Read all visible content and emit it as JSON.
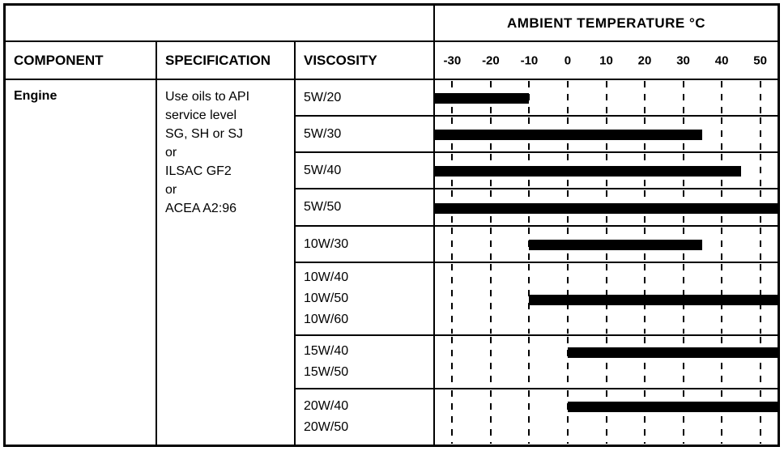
{
  "header": {
    "ambient_title": "AMBIENT TEMPERATURE °C",
    "col_component": "COMPONENT",
    "col_specification": "SPECIFICATION",
    "col_viscosity": "VISCOSITY"
  },
  "component": {
    "name": "Engine"
  },
  "specification": {
    "lines": [
      "Use oils to API",
      "service level",
      "SG, SH or SJ",
      "or",
      "ILSAC GF2",
      "or",
      "ACEA A2:96"
    ]
  },
  "chart_data": {
    "type": "bar",
    "orientation": "horizontal-range",
    "title": "AMBIENT TEMPERATURE °C",
    "unit": "°C",
    "bar_color": "#000000",
    "axis": {
      "ticks": [
        -30,
        -20,
        -10,
        0,
        10,
        20,
        30,
        40,
        50
      ],
      "plot_min": -34.5,
      "plot_max": 54.5,
      "gridlines": "dashed-vertical"
    },
    "rows": [
      {
        "labels": [
          "5W/20"
        ],
        "range_c": {
          "from": "edge",
          "to": -10
        }
      },
      {
        "labels": [
          "5W/30"
        ],
        "range_c": {
          "from": "edge",
          "to": 35
        }
      },
      {
        "labels": [
          "5W/40"
        ],
        "range_c": {
          "from": "edge",
          "to": 45
        }
      },
      {
        "labels": [
          "5W/50"
        ],
        "range_c": {
          "from": "edge",
          "to": "edge"
        }
      },
      {
        "labels": [
          "10W/30"
        ],
        "range_c": {
          "from": -10,
          "to": 35
        }
      },
      {
        "labels": [
          "10W/40",
          "10W/50",
          "10W/60"
        ],
        "range_c": {
          "from": -10,
          "to": "edge"
        }
      },
      {
        "labels": [
          "15W/40",
          "15W/50"
        ],
        "range_c": {
          "from": 0,
          "to": "edge"
        }
      },
      {
        "labels": [
          "20W/40",
          "20W/50"
        ],
        "range_c": {
          "from": 0,
          "to": "edge"
        }
      }
    ]
  }
}
